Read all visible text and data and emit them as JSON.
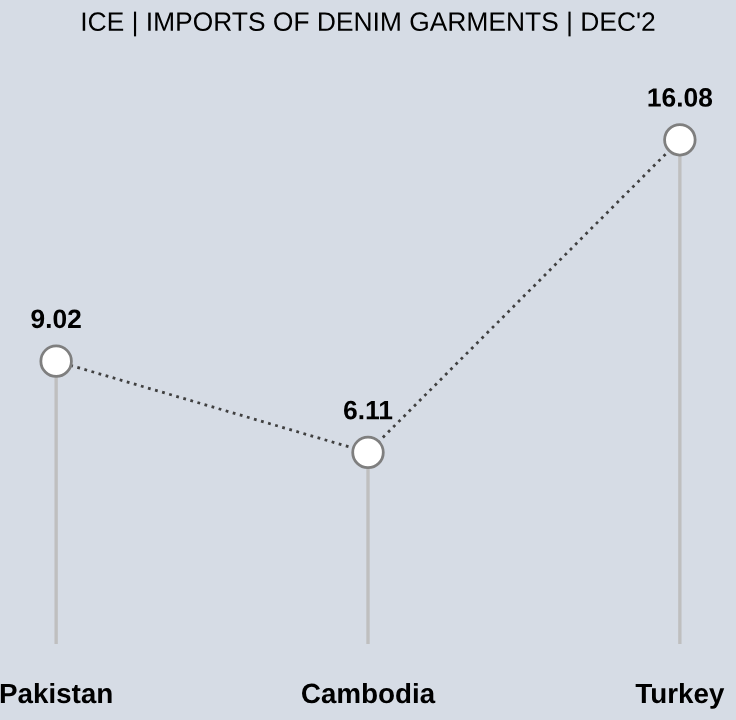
{
  "chart_data": {
    "type": "lollipop",
    "title": "ICE | IMPORTS OF DENIM GARMENTS | DEC'2",
    "categories": [
      "Pakistan",
      "Cambodia",
      "Turkey"
    ],
    "values": [
      9.02,
      6.11,
      16.08
    ],
    "color": "#ffffff",
    "data_labels": true,
    "marker": "circle",
    "line_style": "dotted"
  }
}
